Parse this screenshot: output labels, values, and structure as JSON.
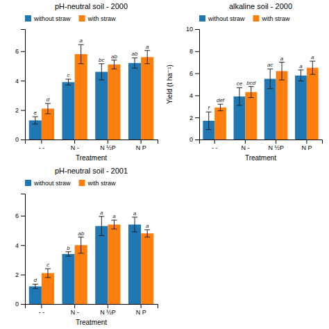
{
  "chart_data": [
    {
      "type": "bar",
      "title": "pH-neutral soil - 2000",
      "xlabel": "Treatment",
      "categories": [
        "- -",
        "N -",
        "N ½P",
        "N P"
      ],
      "series": [
        {
          "name": "without straw",
          "values": [
            1.3,
            3.9,
            4.6,
            5.2
          ],
          "errors": [
            0.25,
            0.2,
            0.55,
            0.35
          ],
          "labels": [
            "e",
            "c",
            "bc",
            "ab"
          ]
        },
        {
          "name": "with straw",
          "values": [
            2.1,
            5.8,
            5.1,
            5.6
          ],
          "errors": [
            0.35,
            0.65,
            0.3,
            0.45
          ],
          "labels": [
            "d",
            "a",
            "ab",
            "a"
          ]
        }
      ],
      "ylim": [
        0,
        7.5
      ],
      "yticks": [
        0,
        2,
        4,
        6
      ],
      "legend": "upper left"
    },
    {
      "type": "bar",
      "title": "alkaline soil - 2000",
      "xlabel": "Treatment",
      "ylabel": "Yield (t ha⁻¹)",
      "categories": [
        "- -",
        "N -",
        "N ½P",
        "N P"
      ],
      "series": [
        {
          "name": "without straw",
          "values": [
            1.7,
            3.9,
            5.5,
            5.8
          ],
          "errors": [
            0.8,
            0.8,
            0.9,
            0.5
          ],
          "labels": [
            "f",
            "ce",
            "ac",
            "a"
          ]
        },
        {
          "name": "with straw",
          "values": [
            2.9,
            4.3,
            6.2,
            6.5
          ],
          "errors": [
            0.3,
            0.5,
            0.8,
            0.6
          ],
          "labels": [
            "def",
            "bcd",
            "a",
            "a"
          ]
        }
      ],
      "ylim": [
        0,
        10
      ],
      "yticks": [
        0,
        2,
        4,
        6,
        8,
        10
      ],
      "legend": "upper left"
    },
    {
      "type": "bar",
      "title": "pH-neutral soil - 2001",
      "xlabel": "Treatment",
      "categories": [
        "- -",
        "N -",
        "N ½P",
        "N P"
      ],
      "series": [
        {
          "name": "without straw",
          "values": [
            1.2,
            3.4,
            5.3,
            5.4
          ],
          "errors": [
            0.15,
            0.15,
            0.65,
            0.5
          ],
          "labels": [
            "d",
            "b",
            "a",
            "a"
          ]
        },
        {
          "name": "with straw",
          "values": [
            2.1,
            4.0,
            5.4,
            4.8
          ],
          "errors": [
            0.3,
            0.55,
            0.3,
            0.25
          ],
          "labels": [
            "c",
            "ab",
            "a",
            "a"
          ]
        }
      ],
      "ylim": [
        0,
        7.5
      ],
      "yticks": [
        0,
        2,
        4,
        6
      ],
      "legend": "upper left"
    }
  ]
}
